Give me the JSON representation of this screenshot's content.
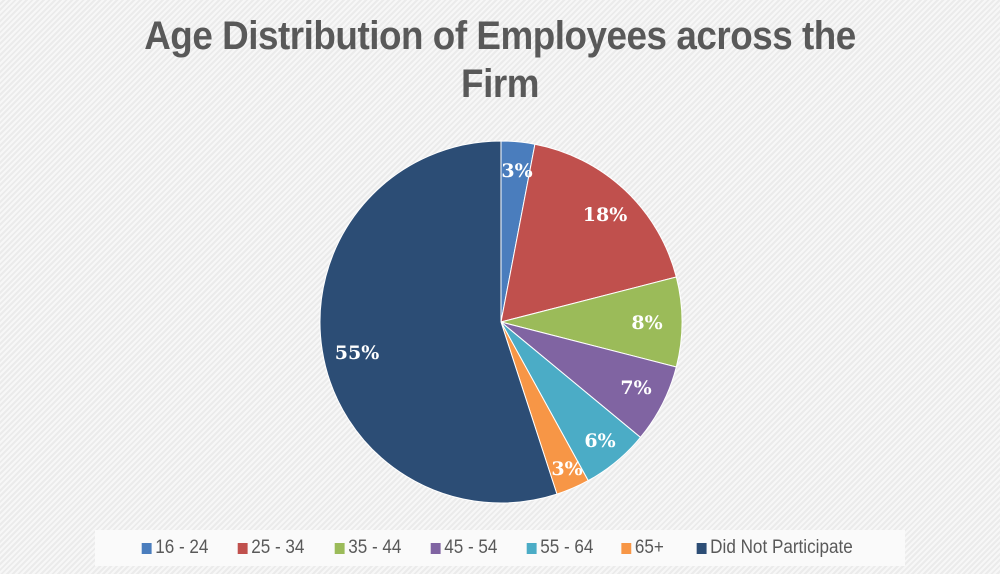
{
  "chart_data": {
    "type": "pie",
    "title": "Age Distribution of Employees across the Firm",
    "categories": [
      "16 - 24",
      "25 - 34",
      "35 - 44",
      "45 - 54",
      "55 - 64",
      "65+",
      "Did Not Participate"
    ],
    "values": [
      3,
      18,
      8,
      7,
      6,
      3,
      55
    ],
    "labels": [
      "3%",
      "18%",
      "8%",
      "7%",
      "6%",
      "3%",
      "55%"
    ],
    "colors": [
      "#4a7dbd",
      "#c0504d",
      "#9bbb59",
      "#8064a2",
      "#4bacc6",
      "#f79646",
      "#2c4d75"
    ],
    "legend_position": "bottom",
    "start_angle_deg": 0,
    "direction": "clockwise"
  },
  "title": {
    "line1": "Age Distribution of Employees across the",
    "line2": "Firm"
  },
  "legend": [
    {
      "label": "16 - 24",
      "color": "#4a7dbd"
    },
    {
      "label": "25 - 34",
      "color": "#c0504d"
    },
    {
      "label": "35 - 44",
      "color": "#9bbb59"
    },
    {
      "label": "45 - 54",
      "color": "#8064a2"
    },
    {
      "label": "55 - 64",
      "color": "#4bacc6"
    },
    {
      "label": "65+",
      "color": "#f79646"
    },
    {
      "label": "Did Not Participate",
      "color": "#2c4d75"
    }
  ]
}
